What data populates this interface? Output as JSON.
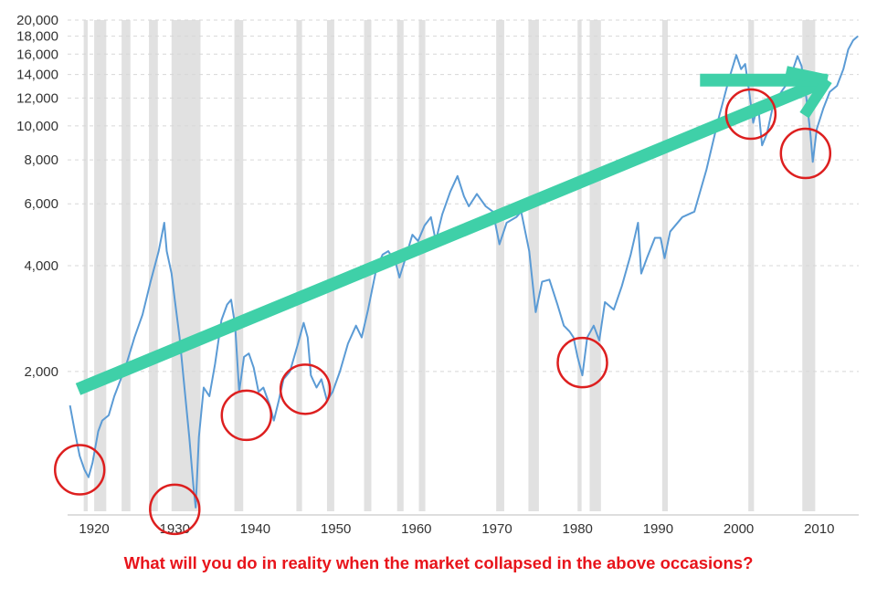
{
  "caption": "What will you do in reality when the market collapsed in the above occasions?",
  "colors": {
    "line": "#5b9bd5",
    "recession": "#e1e1e1",
    "arrow": "#3fd0a8",
    "circle": "#dd1f1f",
    "caption": "#e8141b",
    "grid": "#d7d7d7"
  },
  "chart_data": {
    "type": "line",
    "title": "",
    "xlabel": "",
    "ylabel": "",
    "y_scale": "log",
    "xlim": [
      1916.7,
      2014.9
    ],
    "ylim": [
      800,
      20000
    ],
    "grid": "horizontal dashed",
    "y_ticks": [
      {
        "value": 20000,
        "label": "20,000"
      },
      {
        "value": 18000,
        "label": "18,000"
      },
      {
        "value": 16000,
        "label": "16,000"
      },
      {
        "value": 14000,
        "label": "14,000"
      },
      {
        "value": 12000,
        "label": "12,000"
      },
      {
        "value": 10000,
        "label": "10,000"
      },
      {
        "value": 8000,
        "label": "8,000"
      },
      {
        "value": 6000,
        "label": "6,000"
      },
      {
        "value": 4000,
        "label": "4,000"
      },
      {
        "value": 2000,
        "label": "2,000"
      }
    ],
    "x_ticks": [
      {
        "value": 1920,
        "label": "1920"
      },
      {
        "value": 1930,
        "label": "1930"
      },
      {
        "value": 1940,
        "label": "1940"
      },
      {
        "value": 1950,
        "label": "1950"
      },
      {
        "value": 1960,
        "label": "1960"
      },
      {
        "value": 1970,
        "label": "1970"
      },
      {
        "value": 1980,
        "label": "1980"
      },
      {
        "value": 1990,
        "label": "1990"
      },
      {
        "value": 2000,
        "label": "2000"
      },
      {
        "value": 2010,
        "label": "2010"
      }
    ],
    "recessions": [
      [
        1918.7,
        1919.2
      ],
      [
        1920.0,
        1921.5
      ],
      [
        1923.4,
        1924.5
      ],
      [
        1926.8,
        1927.9
      ],
      [
        1929.6,
        1933.2
      ],
      [
        1937.4,
        1938.5
      ],
      [
        1945.1,
        1945.8
      ],
      [
        1948.9,
        1949.8
      ],
      [
        1953.5,
        1954.4
      ],
      [
        1957.6,
        1958.4
      ],
      [
        1960.3,
        1961.1
      ],
      [
        1969.9,
        1970.9
      ],
      [
        1973.9,
        1975.2
      ],
      [
        1980.0,
        1980.5
      ],
      [
        1981.5,
        1982.9
      ],
      [
        1990.5,
        1991.2
      ],
      [
        2001.2,
        2001.9
      ],
      [
        2007.9,
        2009.5
      ]
    ],
    "series": [
      {
        "values": [
          [
            1917.0,
            1600
          ],
          [
            1917.6,
            1350
          ],
          [
            1918.2,
            1150
          ],
          [
            1918.8,
            1050
          ],
          [
            1919.3,
            1000
          ],
          [
            1919.8,
            1100
          ],
          [
            1920.5,
            1350
          ],
          [
            1921.0,
            1450
          ],
          [
            1921.8,
            1500
          ],
          [
            1922.5,
            1700
          ],
          [
            1923.3,
            1900
          ],
          [
            1924.0,
            2100
          ],
          [
            1925.0,
            2500
          ],
          [
            1926.0,
            2900
          ],
          [
            1927.0,
            3600
          ],
          [
            1928.0,
            4400
          ],
          [
            1928.7,
            5300
          ],
          [
            1929.0,
            4400
          ],
          [
            1929.6,
            3800
          ],
          [
            1930.0,
            3200
          ],
          [
            1930.6,
            2500
          ],
          [
            1931.2,
            1800
          ],
          [
            1931.8,
            1300
          ],
          [
            1932.3,
            950
          ],
          [
            1932.6,
            820
          ],
          [
            1933.0,
            1300
          ],
          [
            1933.6,
            1800
          ],
          [
            1934.3,
            1700
          ],
          [
            1935.0,
            2100
          ],
          [
            1935.8,
            2800
          ],
          [
            1936.5,
            3100
          ],
          [
            1937.0,
            3200
          ],
          [
            1937.5,
            2700
          ],
          [
            1938.0,
            1750
          ],
          [
            1938.6,
            2200
          ],
          [
            1939.2,
            2250
          ],
          [
            1939.8,
            2050
          ],
          [
            1940.4,
            1750
          ],
          [
            1941.0,
            1800
          ],
          [
            1941.8,
            1600
          ],
          [
            1942.3,
            1450
          ],
          [
            1942.9,
            1650
          ],
          [
            1943.5,
            1900
          ],
          [
            1944.3,
            2000
          ],
          [
            1945.3,
            2400
          ],
          [
            1946.0,
            2750
          ],
          [
            1946.5,
            2500
          ],
          [
            1946.9,
            1950
          ],
          [
            1947.6,
            1800
          ],
          [
            1948.2,
            1900
          ],
          [
            1948.9,
            1650
          ],
          [
            1949.6,
            1750
          ],
          [
            1950.5,
            2000
          ],
          [
            1951.5,
            2400
          ],
          [
            1952.5,
            2700
          ],
          [
            1953.2,
            2500
          ],
          [
            1954.0,
            3000
          ],
          [
            1955.0,
            3900
          ],
          [
            1955.8,
            4300
          ],
          [
            1956.5,
            4400
          ],
          [
            1957.4,
            4100
          ],
          [
            1957.9,
            3700
          ],
          [
            1958.5,
            4100
          ],
          [
            1959.5,
            4900
          ],
          [
            1960.2,
            4700
          ],
          [
            1961.0,
            5200
          ],
          [
            1961.8,
            5500
          ],
          [
            1962.4,
            4700
          ],
          [
            1963.2,
            5600
          ],
          [
            1964.2,
            6500
          ],
          [
            1965.1,
            7200
          ],
          [
            1965.9,
            6300
          ],
          [
            1966.5,
            5900
          ],
          [
            1967.5,
            6400
          ],
          [
            1968.6,
            5900
          ],
          [
            1969.5,
            5700
          ],
          [
            1970.3,
            4600
          ],
          [
            1971.2,
            5300
          ],
          [
            1972.4,
            5500
          ],
          [
            1973.0,
            5700
          ],
          [
            1974.0,
            4400
          ],
          [
            1974.8,
            2950
          ],
          [
            1975.6,
            3600
          ],
          [
            1976.5,
            3650
          ],
          [
            1977.5,
            3100
          ],
          [
            1978.3,
            2700
          ],
          [
            1979.0,
            2600
          ],
          [
            1979.5,
            2500
          ],
          [
            1980.0,
            2200
          ],
          [
            1980.6,
            1950
          ],
          [
            1981.2,
            2500
          ],
          [
            1982.0,
            2700
          ],
          [
            1982.7,
            2450
          ],
          [
            1983.4,
            3150
          ],
          [
            1984.5,
            3000
          ],
          [
            1985.5,
            3500
          ],
          [
            1986.6,
            4300
          ],
          [
            1987.5,
            5300
          ],
          [
            1987.9,
            3800
          ],
          [
            1988.6,
            4200
          ],
          [
            1989.6,
            4800
          ],
          [
            1990.3,
            4800
          ],
          [
            1990.8,
            4200
          ],
          [
            1991.5,
            5000
          ],
          [
            1993.0,
            5500
          ],
          [
            1994.5,
            5700
          ],
          [
            1996.0,
            7500
          ],
          [
            1997.5,
            10500
          ],
          [
            1998.8,
            13600
          ],
          [
            1999.7,
            15900
          ],
          [
            2000.3,
            14500
          ],
          [
            2000.8,
            15000
          ],
          [
            2001.3,
            12500
          ],
          [
            2001.8,
            10200
          ],
          [
            2002.4,
            11500
          ],
          [
            2002.9,
            8800
          ],
          [
            2003.5,
            9500
          ],
          [
            2004.3,
            11500
          ],
          [
            2005.3,
            12500
          ],
          [
            2006.3,
            13500
          ],
          [
            2007.3,
            15800
          ],
          [
            2007.8,
            14800
          ],
          [
            2008.4,
            12000
          ],
          [
            2008.9,
            9500
          ],
          [
            2009.2,
            7900
          ],
          [
            2009.7,
            9800
          ],
          [
            2010.5,
            11200
          ],
          [
            2011.3,
            12500
          ],
          [
            2012.2,
            13000
          ],
          [
            2013.0,
            14500
          ],
          [
            2013.6,
            16500
          ],
          [
            2014.2,
            17500
          ],
          [
            2014.8,
            18000
          ]
        ]
      }
    ],
    "annotations": {
      "trend_arrow": {
        "from": [
          1918.0,
          1780
        ],
        "to": [
          2011.0,
          13500
        ]
      },
      "flat_arrow": {
        "from": [
          1995.2,
          13500
        ],
        "to": [
          2011.0,
          13500
        ]
      },
      "crash_circles": [
        {
          "x": 1918.2,
          "y": 1050
        },
        {
          "x": 1930.0,
          "y": 810
        },
        {
          "x": 1938.9,
          "y": 1500
        },
        {
          "x": 1946.2,
          "y": 1780
        },
        {
          "x": 1980.6,
          "y": 2120
        },
        {
          "x": 2001.5,
          "y": 10800
        },
        {
          "x": 2008.3,
          "y": 8350
        }
      ]
    }
  }
}
